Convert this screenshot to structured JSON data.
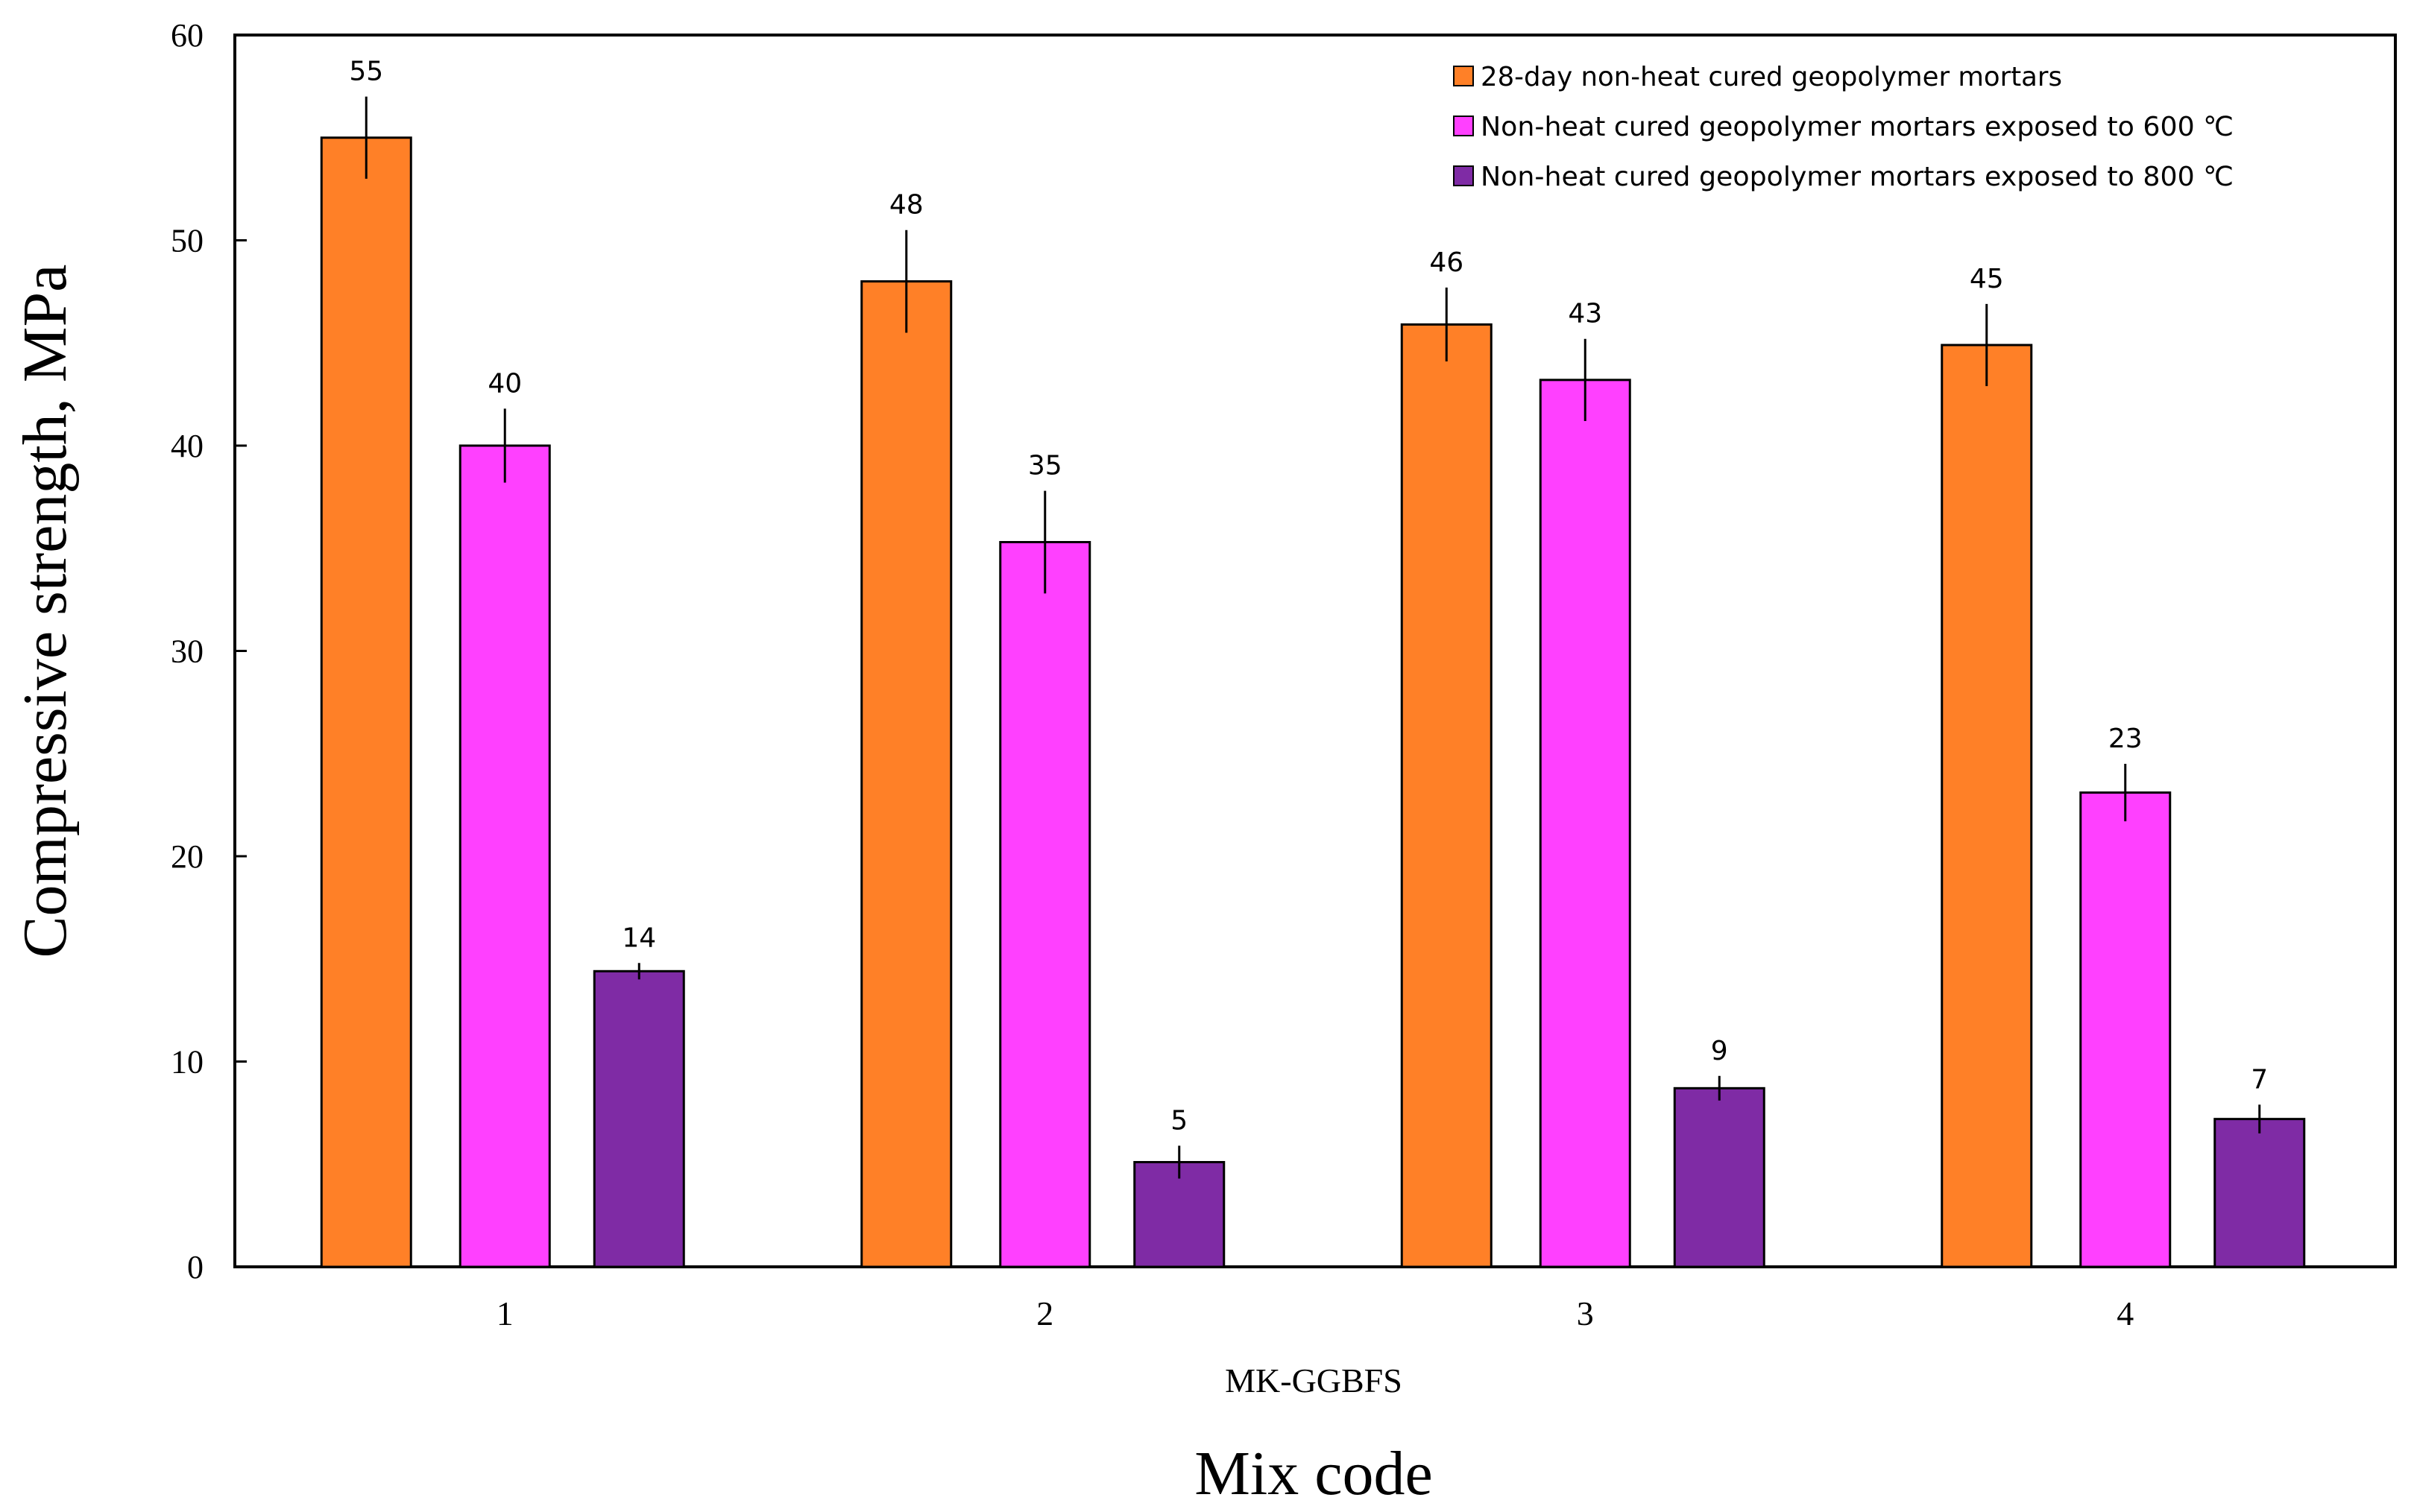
{
  "chart_data": {
    "type": "bar",
    "title": "",
    "xlabel": "Mix code",
    "xsublabel": "MK-GGBFS",
    "ylabel": "Compressive strength, MPa",
    "ylim": [
      0,
      60
    ],
    "yticks": [
      0,
      10,
      20,
      30,
      40,
      50,
      60
    ],
    "grid": false,
    "legend_position": "top-right",
    "categories": [
      "1",
      "2",
      "3",
      "4"
    ],
    "series": [
      {
        "name": "28-day non-heat cured geopolymer mortars",
        "color": "#FF8027",
        "values": [
          55,
          48,
          45.9,
          44.9
        ],
        "errors": [
          2,
          2.5,
          1.8,
          2
        ],
        "labels": [
          "55",
          "48",
          "46",
          "45"
        ]
      },
      {
        "name": "Non-heat cured geopolymer mortars exposed to 600 ℃",
        "color": "#FF40FF",
        "values": [
          40,
          35.3,
          43.2,
          23.1
        ],
        "errors": [
          1.8,
          2.5,
          2,
          1.4
        ],
        "labels": [
          "40",
          "35",
          "43",
          "23"
        ]
      },
      {
        "name": "Non-heat cured geopolymer mortars exposed to 800 ℃",
        "color": "#7F2BA5",
        "values": [
          14.4,
          5.1,
          8.7,
          7.2
        ],
        "errors": [
          0.4,
          0.8,
          0.6,
          0.7
        ],
        "labels": [
          "14",
          "5",
          "9",
          "7"
        ]
      }
    ]
  }
}
